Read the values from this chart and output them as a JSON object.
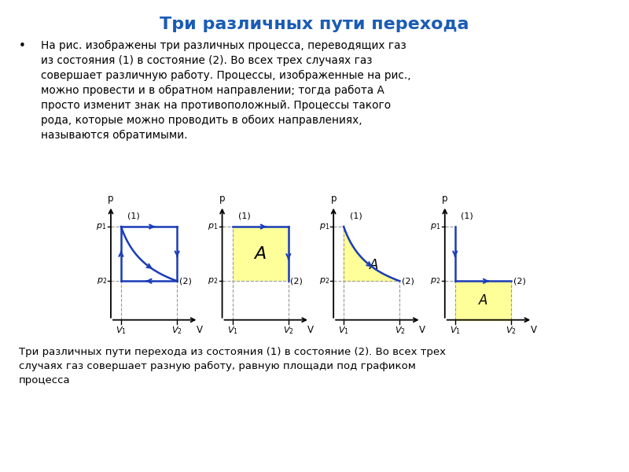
{
  "title": "Три различных пути перехода",
  "title_color": "#1a5cb5",
  "title_fontsize": 16,
  "background_color": "#ffffff",
  "panel_bg_color": "#b8e8e0",
  "bullet_char": "•",
  "bullet_text": "На рис. изображены три различных процесса, переводящих газ\nиз состояния (1) в состояние (2). Во всех трех случаях газ\nсовершает различную работу. Процессы, изображенные на рис.,\nможно провести и в обратном направлении; тогда работа А\nпросто изменит знак на противоположный. Процессы такого\nрода, которые можно проводить в обоих направлениях,\nназываются обратимыми.",
  "caption_text": "Три различных пути перехода из состояния (1) в состояние (2). Во всех трех\nслучаях газ совершает разную работу, равную площади под графиком\nпроцесса",
  "arrow_color": "#1a3cb8",
  "fill_color": "#ffff99",
  "dashed_color": "#999999"
}
